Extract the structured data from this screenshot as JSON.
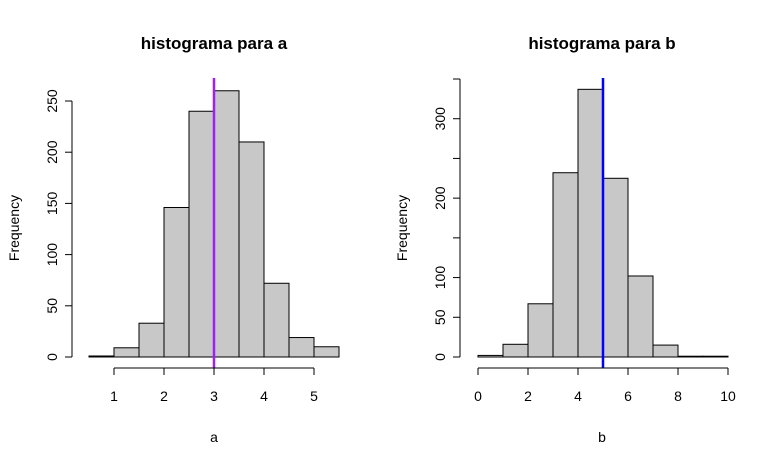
{
  "chart_data": [
    {
      "type": "bar",
      "title": "histograma para a",
      "xlabel": "a",
      "ylabel": "Frequency",
      "bin_edges": [
        0.5,
        1,
        1.5,
        2,
        2.5,
        3,
        3.5,
        4,
        4.5,
        5,
        5.5
      ],
      "values": [
        1,
        9,
        33,
        146,
        240,
        260,
        210,
        72,
        19,
        10
      ],
      "xticks": [
        1,
        2,
        3,
        4,
        5
      ],
      "yticks": [
        0,
        50,
        100,
        150,
        200,
        250
      ],
      "ytick_labels": [
        "0",
        "50",
        "100",
        "150",
        "200",
        "250"
      ],
      "xlim": [
        0.5,
        5.5
      ],
      "ylim": [
        0,
        250
      ],
      "vline": {
        "x": 3,
        "color": "#a020f0"
      },
      "bar_color": "#c8c8c8",
      "grid": false
    },
    {
      "type": "bar",
      "title": "histograma para b",
      "xlabel": "b",
      "ylabel": "Frequency",
      "bin_edges": [
        0,
        1,
        2,
        3,
        4,
        5,
        6,
        7,
        8,
        9,
        10
      ],
      "values": [
        2,
        16,
        67,
        232,
        337,
        225,
        102,
        15,
        1,
        1
      ],
      "xticks": [
        0,
        2,
        4,
        6,
        8,
        10
      ],
      "yticks": [
        0,
        50,
        100,
        150,
        200,
        250,
        300,
        350
      ],
      "ytick_labels": [
        "0",
        "50",
        "100",
        "",
        "200",
        "",
        "300",
        ""
      ],
      "xlim": [
        0,
        10
      ],
      "ylim": [
        0,
        350
      ],
      "vline": {
        "x": 5,
        "color": "#0000ff"
      },
      "bar_color": "#c8c8c8",
      "grid": false
    }
  ]
}
